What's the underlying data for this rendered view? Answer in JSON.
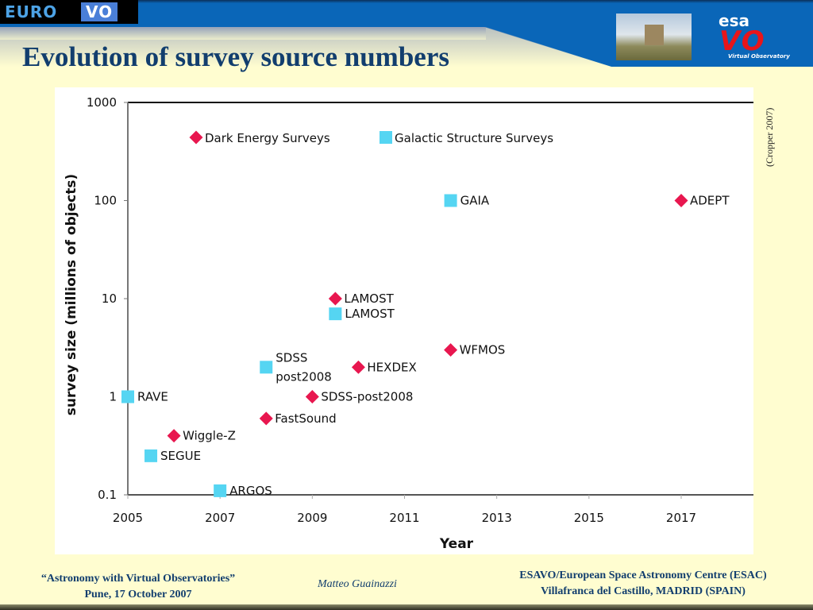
{
  "header": {
    "logo_left": "EURO",
    "logo_left_vo": "VO",
    "esa_label": "esa",
    "vo_label": "VO",
    "vo_subtitle": "Virtual Observatory",
    "title": "Evolution of survey source numbers"
  },
  "credit": "(Cropper 2007)",
  "colors": {
    "dark_energy": "#e8174f",
    "galactic": "#55d5f2",
    "title": "#123e6e",
    "background": "#fffdd0",
    "header_blue": "#0a66b8"
  },
  "chart_data": {
    "type": "scatter",
    "title": "",
    "xlabel": "Year",
    "ylabel": "survey size (millions of objects)",
    "xlim": [
      2005,
      2018.5
    ],
    "ylim": [
      0.1,
      1000
    ],
    "yscale": "log",
    "xticks": [
      "2005",
      "2007",
      "2009",
      "2011",
      "2013",
      "2015",
      "2017"
    ],
    "yticks": [
      "0.1",
      "1",
      "10",
      "100",
      "1000"
    ],
    "legend_placement": "top",
    "series": [
      {
        "name": "Dark Energy Surveys",
        "marker": "diamond",
        "points": [
          {
            "label": "Wiggle-Z",
            "x": 2006,
            "y": 0.4
          },
          {
            "label": "FastSound",
            "x": 2008,
            "y": 0.6
          },
          {
            "label": "SDSS-post2008",
            "x": 2009,
            "y": 1
          },
          {
            "label": "HEXDEX",
            "x": 2010,
            "y": 2
          },
          {
            "label": "LAMOST",
            "x": 2009.5,
            "y": 10
          },
          {
            "label": "WFMOS",
            "x": 2012,
            "y": 3
          },
          {
            "label": "ADEPT",
            "x": 2017,
            "y": 100
          }
        ]
      },
      {
        "name": "Galactic Structure Surveys",
        "marker": "square",
        "points": [
          {
            "label": "RAVE",
            "x": 2005,
            "y": 1
          },
          {
            "label": "SEGUE",
            "x": 2005.5,
            "y": 0.25
          },
          {
            "label": "ARGOS",
            "x": 2007,
            "y": 0.11
          },
          {
            "label": "SDSS|post2008",
            "x": 2008,
            "y": 2
          },
          {
            "label": "LAMOST",
            "x": 2009.5,
            "y": 7
          },
          {
            "label": "GAIA",
            "x": 2012,
            "y": 100
          }
        ]
      }
    ]
  },
  "footer": {
    "event": "“Astronomy with Virtual Observatories”",
    "event_date": "Pune, 17 October 2007",
    "author": "Matteo Guainazzi",
    "institution": "ESAVO/European Space Astronomy Centre (ESAC)",
    "location": "Villafranca del Castillo, MADRID (SPAIN)"
  }
}
